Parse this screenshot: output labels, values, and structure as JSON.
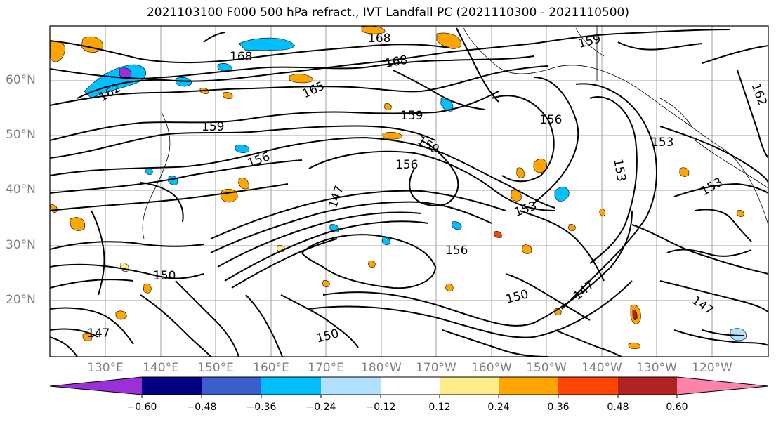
{
  "title": "2021103100 F000 500 hPa refract., IVT Landfall PC (2021110300 - 2021110500)",
  "lat_labels": [
    "60°N",
    "50°N",
    "40°N",
    "30°N",
    "20°N"
  ],
  "lon_labels": [
    "130°E",
    "140°E",
    "150°E",
    "160°E",
    "170°E",
    "180°W",
    "170°W",
    "160°W",
    "150°W",
    "140°W",
    "130°W",
    "120°W"
  ],
  "contour_labels": [
    "168",
    "168",
    "168",
    "159",
    "162",
    "165",
    "159",
    "159",
    "156",
    "156",
    "153",
    "162",
    "159",
    "156",
    "153",
    "147",
    "153",
    "156",
    "150",
    "147",
    "150",
    "150",
    "147",
    "153",
    "147"
  ],
  "colorbar": {
    "colors": [
      "#9b30d9",
      "#000080",
      "#3a5fcd",
      "#00bfff",
      "#b0e2ff",
      "#ffffff",
      "#ffec8b",
      "#ffa500",
      "#ff4500",
      "#b22222",
      "#ff83a8"
    ],
    "tick_labels": [
      "−0.60",
      "−0.48",
      "−0.36",
      "−0.24",
      "−0.12",
      "0.12",
      "0.24",
      "0.36",
      "0.48",
      "0.60"
    ]
  }
}
